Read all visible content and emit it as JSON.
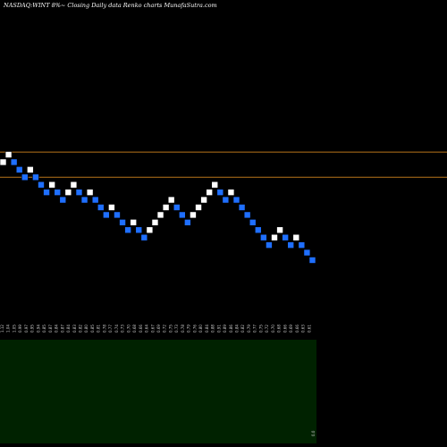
{
  "header": {
    "title": "NASDAQ:WINT 8%~  Closing Daily data  Renko  charts MunafaSutra.com"
  },
  "chart_data": {
    "type": "renko",
    "title": "NASDAQ:WINT 8%~  Closing Daily data  Renko  charts MunafaSutra.com",
    "xlabel": "",
    "ylabel": "",
    "grid": false,
    "colors": {
      "up": "#ffffff",
      "down": "#1f6fff",
      "reference_line": "#b8741a",
      "volume_panel": "#002200"
    },
    "reference_lines": [
      1.02,
      0.92
    ],
    "bricks": [
      {
        "y": 0.98,
        "dir": "up"
      },
      {
        "y": 1.01,
        "dir": "up"
      },
      {
        "y": 0.98,
        "dir": "down"
      },
      {
        "y": 0.95,
        "dir": "down"
      },
      {
        "y": 0.92,
        "dir": "down"
      },
      {
        "y": 0.95,
        "dir": "up"
      },
      {
        "y": 0.92,
        "dir": "down"
      },
      {
        "y": 0.89,
        "dir": "down"
      },
      {
        "y": 0.86,
        "dir": "down"
      },
      {
        "y": 0.89,
        "dir": "up"
      },
      {
        "y": 0.86,
        "dir": "down"
      },
      {
        "y": 0.83,
        "dir": "down"
      },
      {
        "y": 0.86,
        "dir": "up"
      },
      {
        "y": 0.89,
        "dir": "up"
      },
      {
        "y": 0.86,
        "dir": "down"
      },
      {
        "y": 0.83,
        "dir": "down"
      },
      {
        "y": 0.86,
        "dir": "up"
      },
      {
        "y": 0.83,
        "dir": "down"
      },
      {
        "y": 0.8,
        "dir": "down"
      },
      {
        "y": 0.77,
        "dir": "down"
      },
      {
        "y": 0.8,
        "dir": "up"
      },
      {
        "y": 0.77,
        "dir": "down"
      },
      {
        "y": 0.74,
        "dir": "down"
      },
      {
        "y": 0.71,
        "dir": "down"
      },
      {
        "y": 0.74,
        "dir": "up"
      },
      {
        "y": 0.71,
        "dir": "down"
      },
      {
        "y": 0.68,
        "dir": "down"
      },
      {
        "y": 0.71,
        "dir": "up"
      },
      {
        "y": 0.74,
        "dir": "up"
      },
      {
        "y": 0.77,
        "dir": "up"
      },
      {
        "y": 0.8,
        "dir": "up"
      },
      {
        "y": 0.83,
        "dir": "up"
      },
      {
        "y": 0.8,
        "dir": "down"
      },
      {
        "y": 0.77,
        "dir": "down"
      },
      {
        "y": 0.74,
        "dir": "down"
      },
      {
        "y": 0.77,
        "dir": "up"
      },
      {
        "y": 0.8,
        "dir": "up"
      },
      {
        "y": 0.83,
        "dir": "up"
      },
      {
        "y": 0.86,
        "dir": "up"
      },
      {
        "y": 0.89,
        "dir": "up"
      },
      {
        "y": 0.86,
        "dir": "down"
      },
      {
        "y": 0.83,
        "dir": "down"
      },
      {
        "y": 0.86,
        "dir": "up"
      },
      {
        "y": 0.83,
        "dir": "down"
      },
      {
        "y": 0.8,
        "dir": "down"
      },
      {
        "y": 0.77,
        "dir": "down"
      },
      {
        "y": 0.74,
        "dir": "down"
      },
      {
        "y": 0.71,
        "dir": "down"
      },
      {
        "y": 0.68,
        "dir": "down"
      },
      {
        "y": 0.65,
        "dir": "down"
      },
      {
        "y": 0.68,
        "dir": "up"
      },
      {
        "y": 0.71,
        "dir": "up"
      },
      {
        "y": 0.68,
        "dir": "down"
      },
      {
        "y": 0.65,
        "dir": "down"
      },
      {
        "y": 0.68,
        "dir": "up"
      },
      {
        "y": 0.65,
        "dir": "down"
      },
      {
        "y": 0.62,
        "dir": "down"
      },
      {
        "y": 0.59,
        "dir": "down"
      }
    ],
    "x_tick_labels": [
      "1.12",
      "1.04",
      "1.05",
      "0.99",
      "0.97",
      "0.95",
      "0.94",
      "0.85",
      "0.87",
      "0.84",
      "0.87",
      "0.84",
      "0.83",
      "0.82",
      "0.80",
      "0.85",
      "0.81",
      "0.78",
      "0.77",
      "0.74",
      "0.73",
      "0.70",
      "0.68",
      "0.66",
      "0.64",
      "0.67",
      "0.69",
      "0.72",
      "0.75",
      "0.73",
      "0.78",
      "0.79",
      "0.76",
      "0.80",
      "0.84",
      "0.88",
      "0.91",
      "0.89",
      "0.86",
      "0.84",
      "0.82",
      "0.79",
      "0.77",
      "0.75",
      "0.72",
      "0.70",
      "0.68",
      "0.66",
      "0.69",
      "0.66",
      "0.63",
      "0.61"
    ],
    "volume_label": "0.0"
  }
}
